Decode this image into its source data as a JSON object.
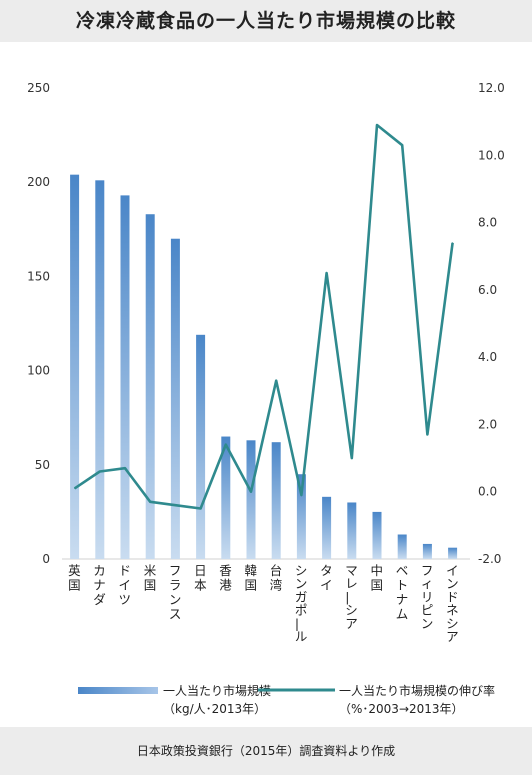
{
  "title": "冷凍冷蔵食品の一人当たり市場規模の比較",
  "source": "日本政策投資銀行（2015年）調査資料より作成",
  "chart_data": {
    "type": "bar+line",
    "categories": [
      "英国",
      "カナダ",
      "ドイツ",
      "米国",
      "フランス",
      "日本",
      "香港",
      "韓国",
      "台湾",
      "シンガポール",
      "タイ",
      "マレーシア",
      "中国",
      "ベトナム",
      "フィリピン",
      "インドネシア"
    ],
    "series": [
      {
        "name": "一人当たり市場規模",
        "name_line2": "（kg/人･2013年）",
        "type": "bar",
        "axis": "left",
        "color": "#4a86c8",
        "values": [
          204,
          201,
          193,
          183,
          170,
          119,
          65,
          63,
          62,
          45,
          33,
          30,
          25,
          13,
          8,
          6
        ]
      },
      {
        "name": "一人当たり市場規模の伸び率",
        "name_line2": "（%･2003→2013年）",
        "type": "line",
        "axis": "right",
        "color": "#2f8a8e",
        "values": [
          0.1,
          0.6,
          0.7,
          -0.3,
          -0.4,
          -0.5,
          1.4,
          0.0,
          3.3,
          -0.1,
          6.5,
          1.0,
          10.9,
          10.3,
          1.7,
          7.4
        ]
      }
    ],
    "y_left": {
      "min": 0,
      "max": 250,
      "ticks": [
        "0",
        "50",
        "100",
        "150",
        "200",
        "250"
      ]
    },
    "y_right": {
      "min": -2,
      "max": 12,
      "ticks": [
        "-2.0",
        "0.0",
        "2.0",
        "4.0",
        "6.0",
        "8.0",
        "10.0",
        "12.0"
      ]
    },
    "grid": false,
    "legend_position": "bottom"
  }
}
